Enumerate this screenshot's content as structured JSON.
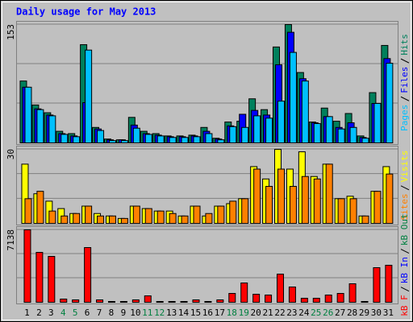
{
  "title": "Daily usage for May 2013",
  "chart_data": [
    {
      "type": "bar",
      "ylim": [
        0,
        153
      ],
      "yticks": [
        153
      ],
      "legend": [
        "Pages",
        "Files",
        "Hits"
      ],
      "series": [
        {
          "name": "Hits",
          "color": "#00805c",
          "values": [
            80,
            49,
            39,
            15,
            12,
            127,
            20,
            5,
            4,
            33,
            15,
            12,
            9,
            9,
            10,
            20,
            6,
            27,
            28,
            57,
            43,
            124,
            153,
            91,
            27,
            45,
            28,
            38,
            9,
            65,
            126
          ]
        },
        {
          "name": "Files",
          "color": "#0000ff",
          "values": [
            72,
            44,
            36,
            12,
            9,
            52,
            18,
            4,
            4,
            23,
            12,
            10,
            8,
            8,
            9,
            15,
            5,
            22,
            37,
            42,
            36,
            101,
            143,
            83,
            26,
            34,
            20,
            26,
            7,
            51,
            109
          ]
        },
        {
          "name": "Pages",
          "color": "#00c0ff",
          "values": [
            72,
            43,
            35,
            11,
            8,
            120,
            16,
            3,
            3,
            19,
            11,
            9,
            7,
            7,
            8,
            12,
            4,
            21,
            20,
            35,
            32,
            54,
            117,
            80,
            25,
            34,
            18,
            20,
            6,
            51,
            103
          ]
        }
      ]
    },
    {
      "type": "bar",
      "ylim": [
        0,
        30
      ],
      "yticks": [
        30
      ],
      "legend": [
        "Sites",
        "Visits"
      ],
      "series": [
        {
          "name": "Visits",
          "color": "#ffff00",
          "values": [
            24,
            12,
            9,
            6,
            4,
            7,
            4,
            3,
            2,
            7,
            6,
            5,
            5,
            3,
            7,
            3,
            7,
            8,
            10,
            23,
            18,
            30,
            22,
            29,
            19,
            24,
            10,
            11,
            3,
            13,
            23
          ]
        },
        {
          "name": "Sites",
          "color": "#ff8000",
          "values": [
            10,
            13,
            5,
            3,
            4,
            7,
            3,
            3,
            2,
            7,
            6,
            5,
            4,
            3,
            7,
            4,
            7,
            9,
            10,
            22,
            15,
            22,
            15,
            19,
            18,
            24,
            10,
            10,
            3,
            13,
            20
          ]
        }
      ]
    },
    {
      "type": "bar",
      "ylim": [
        0,
        7138
      ],
      "yticks": [
        7138
      ],
      "legend": [
        "kB F",
        "kB In",
        "kB Out"
      ],
      "legend_colors": [
        "#ff0000",
        "#0000ff",
        "#008040"
      ],
      "categories": [
        "1",
        "2",
        "3",
        "4",
        "5",
        "6",
        "7",
        "8",
        "9",
        "10",
        "11",
        "12",
        "13",
        "14",
        "15",
        "16",
        "17",
        "18",
        "19",
        "20",
        "21",
        "22",
        "23",
        "24",
        "25",
        "26",
        "27",
        "28",
        "29",
        "30",
        "31"
      ],
      "category_colors": [
        "#000000",
        "#000000",
        "#000000",
        "#008040",
        "#008040",
        "#000000",
        "#000000",
        "#000000",
        "#000000",
        "#000000",
        "#008040",
        "#008040",
        "#000000",
        "#000000",
        "#000000",
        "#000000",
        "#000000",
        "#008040",
        "#008040",
        "#000000",
        "#000000",
        "#000000",
        "#000000",
        "#000000",
        "#008040",
        "#008040",
        "#000000",
        "#000000",
        "#000000",
        "#000000",
        "#000000"
      ],
      "series": [
        {
          "name": "kB F",
          "color": "#ff0000",
          "values": [
            7138,
            4917,
            4521,
            317,
            238,
            5392,
            238,
            80,
            80,
            238,
            634,
            80,
            80,
            80,
            238,
            80,
            238,
            872,
            1903,
            793,
            714,
            2776,
            1507,
            397,
            397,
            714,
            872,
            1824,
            80,
            3410,
            3648
          ]
        }
      ]
    }
  ]
}
